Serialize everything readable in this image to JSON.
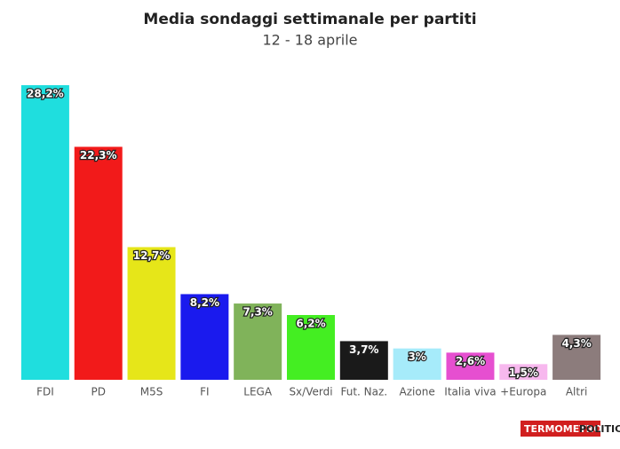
{
  "chart_data": {
    "type": "bar",
    "title": "Media sondaggi settimanale per partiti",
    "subtitle": "12 - 18 aprile",
    "categories": [
      "FDI",
      "PD",
      "M5S",
      "FI",
      "LEGA",
      "Sx/Verdi",
      "Fut. Naz.",
      "Azione",
      "Italia viva",
      "+Europa",
      "Altri"
    ],
    "values": [
      28.2,
      22.3,
      12.7,
      8.2,
      7.3,
      6.2,
      3.7,
      3,
      2.6,
      1.5,
      4.3
    ],
    "value_labels": [
      "28,2%",
      "22,3%",
      "12,7%",
      "8,2%",
      "7,3%",
      "6,2%",
      "3,7%",
      "3%",
      "2,6%",
      "1,5%",
      "4,3%"
    ],
    "colors": [
      "#1fdede",
      "#f21a1a",
      "#e6e619",
      "#1a1aee",
      "#80b35a",
      "#44ee22",
      "#1a1a1a",
      "#a6ebfa",
      "#e64fd0",
      "#f7b8ee",
      "#8c7c7c"
    ],
    "logo": [
      "TERMOMETRO",
      "POLITICO"
    ]
  }
}
